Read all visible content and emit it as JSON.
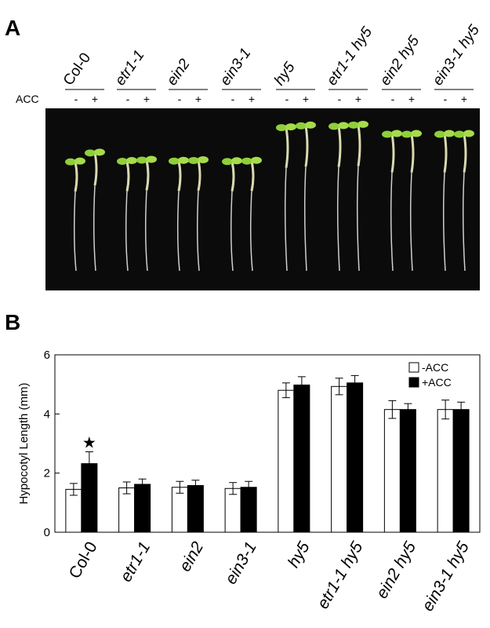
{
  "panel_a": {
    "letter": "A",
    "row_label": "ACC",
    "minus": "-",
    "plus": "+",
    "genotypes": [
      {
        "name": "Col-0",
        "italic": false
      },
      {
        "name": "etr1-1",
        "italic": true
      },
      {
        "name": "ein2",
        "italic": true
      },
      {
        "name": "ein3-1",
        "italic": true
      },
      {
        "name": "hy5",
        "italic": true
      },
      {
        "name": "etr1-1 hy5",
        "italic": true
      },
      {
        "name": "ein2 hy5",
        "italic": true
      },
      {
        "name": "ein3-1 hy5",
        "italic": true
      }
    ],
    "photo_background": "#0b0b0b",
    "seedling_color": "#8fcf3a"
  },
  "panel_b": {
    "letter": "B",
    "star": "★",
    "colors": {
      "minus_acc": "#ffffff",
      "plus_acc": "#000000"
    }
  },
  "chart_data": {
    "type": "bar",
    "categories": [
      "Col-0",
      "etr1-1",
      "ein2",
      "ein3-1",
      "hy5",
      "etr1-1 hy5",
      "ein2 hy5",
      "ein3-1 hy5"
    ],
    "series": [
      {
        "name": "-ACC",
        "values": [
          1.45,
          1.5,
          1.52,
          1.48,
          4.8,
          4.93,
          4.15,
          4.15
        ],
        "errors": [
          0.2,
          0.2,
          0.2,
          0.2,
          0.25,
          0.28,
          0.3,
          0.32
        ]
      },
      {
        "name": "+ACC",
        "values": [
          2.32,
          1.62,
          1.58,
          1.52,
          4.98,
          5.05,
          4.15,
          4.15
        ],
        "errors": [
          0.4,
          0.18,
          0.18,
          0.2,
          0.28,
          0.25,
          0.2,
          0.25
        ]
      }
    ],
    "ylabel": "Hypocotyl Length (mm)",
    "xlabel": "",
    "ylim": [
      0,
      6
    ],
    "yticks": [
      "0",
      "2",
      "4",
      "6"
    ],
    "legend": "top-right",
    "grid": false,
    "annotation": {
      "category": "Col-0",
      "series": "+ACC",
      "text": "★"
    }
  }
}
